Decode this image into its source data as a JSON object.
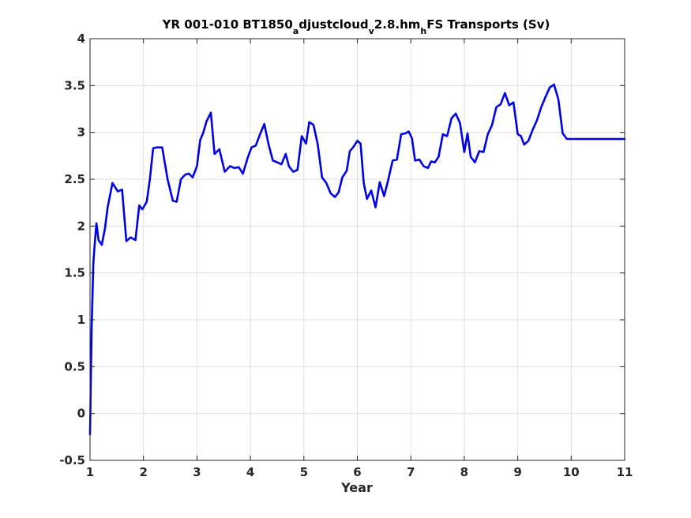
{
  "chart_data": {
    "type": "line",
    "title": {
      "prefix": "YR 001-010 BT1850",
      "sub1": "a",
      "mid1": "djustcloud",
      "sub2": "v",
      "mid2": "2.8.hm",
      "sub3": "h",
      "suffix": "FS Transports (Sv)"
    },
    "xlabel": "Year",
    "ylabel": "",
    "xlim": [
      1,
      11
    ],
    "ylim": [
      -0.5,
      4
    ],
    "xticks": [
      1,
      2,
      3,
      4,
      5,
      6,
      7,
      8,
      9,
      10,
      11
    ],
    "yticks": [
      -0.5,
      0,
      0.5,
      1,
      1.5,
      2,
      2.5,
      3,
      3.5,
      4
    ],
    "ytick_labels": [
      "-0.5",
      "0",
      "0.5",
      "1",
      "1.5",
      "2",
      "2.5",
      "3",
      "3.5",
      "4"
    ],
    "grid": true,
    "series": [
      {
        "color": "#0000e6",
        "x": [
          1.0,
          1.03,
          1.06,
          1.08,
          1.12,
          1.16,
          1.22,
          1.28,
          1.33,
          1.42,
          1.52,
          1.6,
          1.68,
          1.76,
          1.85,
          1.92,
          1.98,
          2.06,
          2.12,
          2.18,
          2.25,
          2.35,
          2.45,
          2.55,
          2.62,
          2.7,
          2.78,
          2.85,
          2.92,
          3.0,
          3.06,
          3.12,
          3.18,
          3.26,
          3.33,
          3.42,
          3.52,
          3.62,
          3.7,
          3.78,
          3.86,
          3.95,
          4.02,
          4.1,
          4.18,
          4.26,
          4.34,
          4.42,
          4.5,
          4.58,
          4.66,
          4.72,
          4.8,
          4.88,
          4.96,
          5.04,
          5.1,
          5.18,
          5.26,
          5.34,
          5.42,
          5.5,
          5.58,
          5.65,
          5.72,
          5.8,
          5.86,
          5.92,
          6.0,
          6.06,
          6.12,
          6.18,
          6.26,
          6.34,
          6.42,
          6.5,
          6.58,
          6.66,
          6.74,
          6.82,
          6.9,
          6.96,
          7.02,
          7.08,
          7.16,
          7.24,
          7.32,
          7.38,
          7.45,
          7.52,
          7.6,
          7.68,
          7.76,
          7.84,
          7.92,
          8.0,
          8.06,
          8.12,
          8.2,
          8.28,
          8.36,
          8.44,
          8.52,
          8.6,
          8.68,
          8.76,
          8.84,
          8.92,
          9.0,
          9.06,
          9.12,
          9.2,
          9.28,
          9.36,
          9.44,
          9.52,
          9.6,
          9.68,
          9.76,
          9.84,
          9.92,
          10.0,
          10.06,
          10.12,
          10.2,
          10.28,
          10.36,
          10.44,
          10.52,
          10.6,
          10.68,
          10.76,
          10.84,
          10.92,
          11.0
        ],
        "values": [
          -0.22,
          0.9,
          1.58,
          1.75,
          2.03,
          1.85,
          1.8,
          1.98,
          2.2,
          2.46,
          2.37,
          2.39,
          1.84,
          1.88,
          1.85,
          2.22,
          2.18,
          2.26,
          2.5,
          2.83,
          2.84,
          2.84,
          2.5,
          2.27,
          2.26,
          2.5,
          2.55,
          2.56,
          2.52,
          2.64,
          2.92,
          3.0,
          3.12,
          3.21,
          2.77,
          2.82,
          2.58,
          2.64,
          2.62,
          2.63,
          2.56,
          2.73,
          2.84,
          2.86,
          2.98,
          3.09,
          2.87,
          2.7,
          2.68,
          2.66,
          2.77,
          2.64,
          2.58,
          2.6,
          2.96,
          2.88,
          3.11,
          3.08,
          2.87,
          2.52,
          2.46,
          2.35,
          2.31,
          2.36,
          2.52,
          2.59,
          2.8,
          2.84,
          2.91,
          2.88,
          2.46,
          2.29,
          2.38,
          2.2,
          2.47,
          2.32,
          2.5,
          2.7,
          2.71,
          2.98,
          2.99,
          3.01,
          2.94,
          2.7,
          2.71,
          2.64,
          2.62,
          2.69,
          2.68,
          2.74,
          2.98,
          2.96,
          3.15,
          3.2,
          3.1,
          2.79,
          2.99,
          2.74,
          2.68,
          2.8,
          2.79,
          2.98,
          3.08,
          3.27,
          3.3,
          3.42,
          3.29,
          3.32,
          2.98,
          2.96,
          2.87,
          2.91,
          3.03,
          3.13,
          3.27,
          3.38,
          3.48,
          3.51,
          3.35,
          2.99,
          2.93,
          2.93,
          2.93,
          2.93,
          2.93,
          2.93,
          2.93,
          2.93,
          2.93,
          2.93,
          2.93,
          2.93,
          2.93,
          2.93,
          2.93
        ]
      }
    ]
  }
}
